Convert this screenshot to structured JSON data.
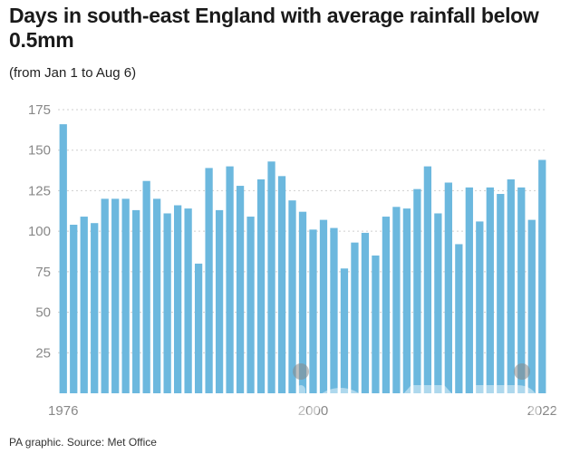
{
  "title": "Days in south-east England with average rainfall below 0.5mm",
  "subtitle": "(from Jan 1 to Aug 6)",
  "source": "PA graphic. Source: Met Office",
  "watermark_text": "iconic",
  "colors": {
    "bar": "#6cb8de",
    "grid": "#cfcfcf",
    "tick": "#888888"
  },
  "chart_data": {
    "type": "bar",
    "title": "Days in south-east England with average rainfall below 0.5mm",
    "subtitle": "(from Jan 1 to Aug 6)",
    "xlabel": "",
    "ylabel": "",
    "ylim": [
      0,
      175
    ],
    "yticks": [
      25,
      50,
      75,
      100,
      125,
      150,
      175
    ],
    "xticks_shown": [
      "1976",
      "2000",
      "2022"
    ],
    "grid": true,
    "categories": [
      "1976",
      "1977",
      "1978",
      "1979",
      "1980",
      "1981",
      "1982",
      "1983",
      "1984",
      "1985",
      "1986",
      "1987",
      "1988",
      "1989",
      "1990",
      "1991",
      "1992",
      "1993",
      "1994",
      "1995",
      "1996",
      "1997",
      "1998",
      "1999",
      "2000",
      "2001",
      "2002",
      "2003",
      "2004",
      "2005",
      "2006",
      "2007",
      "2008",
      "2009",
      "2010",
      "2011",
      "2012",
      "2013",
      "2014",
      "2015",
      "2016",
      "2017",
      "2018",
      "2019",
      "2020",
      "2021",
      "2022"
    ],
    "values": [
      166,
      104,
      109,
      105,
      120,
      120,
      120,
      113,
      131,
      120,
      111,
      116,
      114,
      80,
      139,
      113,
      140,
      128,
      109,
      132,
      143,
      134,
      119,
      112,
      101,
      107,
      102,
      77,
      93,
      99,
      85,
      109,
      115,
      114,
      126,
      140,
      111,
      130,
      92,
      127,
      106,
      127,
      123,
      132,
      127,
      107,
      144
    ]
  }
}
